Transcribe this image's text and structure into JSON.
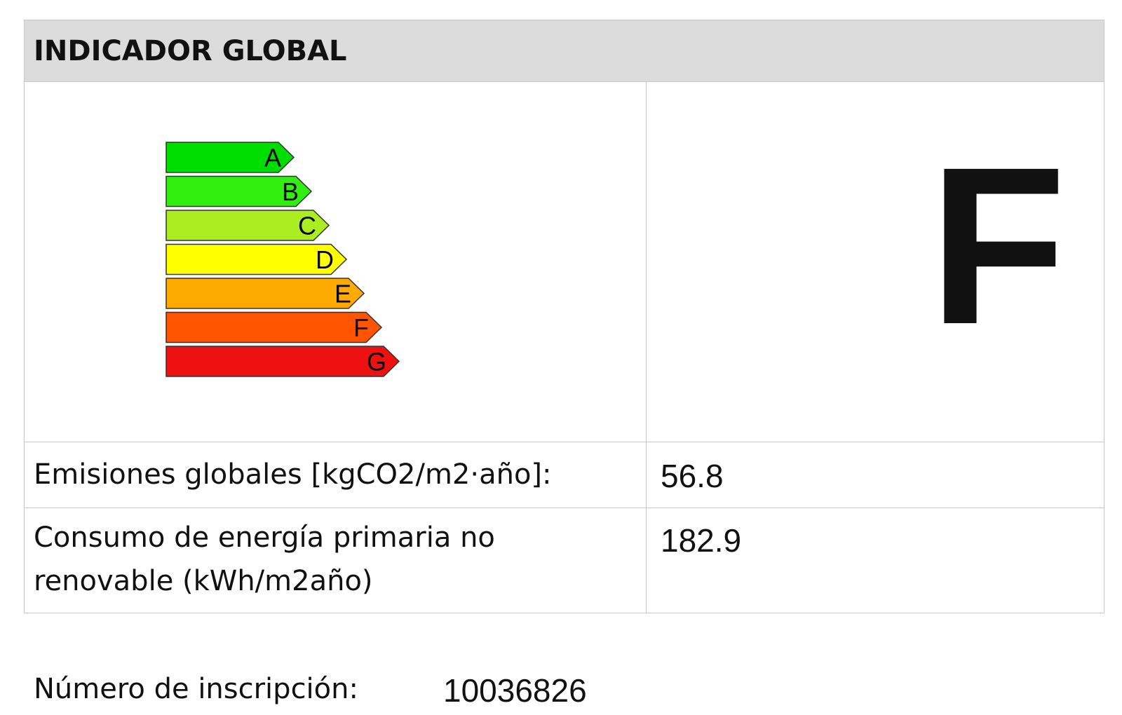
{
  "header": {
    "title": "INDICADOR GLOBAL"
  },
  "scale": {
    "classes": [
      {
        "label": "A",
        "color": "#00dd00"
      },
      {
        "label": "B",
        "color": "#33ee11"
      },
      {
        "label": "C",
        "color": "#aaee22"
      },
      {
        "label": "D",
        "color": "#ffff00"
      },
      {
        "label": "E",
        "color": "#ffaa00"
      },
      {
        "label": "F",
        "color": "#ff5500"
      },
      {
        "label": "G",
        "color": "#ee1111"
      }
    ],
    "rating": "F"
  },
  "table": {
    "rows": [
      [
        "Emisiones globales [kgCO2/m2·año]:",
        56.8
      ],
      [
        "Consumo de energía primaria no renovable (kWh/m2año)",
        182.9
      ]
    ]
  },
  "footer": {
    "label": "Número de inscripción:",
    "value": 10036826
  }
}
